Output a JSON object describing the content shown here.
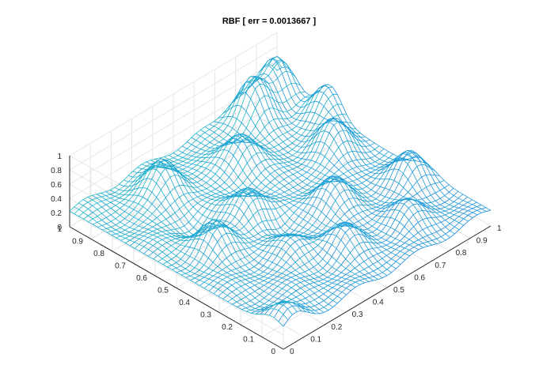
{
  "figure": {
    "background": "#ffffff"
  },
  "chart_data": {
    "type": "surface-mesh",
    "title": "RBF [ err = 0.0013667 ]",
    "xlabel": "",
    "ylabel": "",
    "zlabel": "",
    "xlim": [
      0,
      1
    ],
    "ylim": [
      0,
      1
    ],
    "zlim": [
      0,
      1
    ],
    "x_ticks": [
      "0",
      "0.1",
      "0.2",
      "0.3",
      "0.4",
      "0.5",
      "0.6",
      "0.7",
      "0.8",
      "0.9",
      "1"
    ],
    "y_ticks": [
      "0",
      "0.1",
      "0.2",
      "0.3",
      "0.4",
      "0.5",
      "0.6",
      "0.7",
      "0.8",
      "0.9",
      "1"
    ],
    "z_ticks": [
      "0",
      "0.2",
      "0.4",
      "0.6",
      "0.8",
      "1"
    ],
    "grid": true,
    "box": "open 3-D axes, view az=-37.5 el=30 style",
    "mesh_resolution": 46,
    "colormap": {
      "low": "#1e7fe6",
      "high": "#20c7c0"
    },
    "surface_peaks": [
      {
        "x": 0.05,
        "y": 0.05,
        "z": 0.45
      },
      {
        "x": 0.18,
        "y": 0.5,
        "z": 0.58
      },
      {
        "x": 0.3,
        "y": 0.85,
        "z": 0.7
      },
      {
        "x": 0.4,
        "y": 0.55,
        "z": 0.62
      },
      {
        "x": 0.5,
        "y": 0.2,
        "z": 0.52
      },
      {
        "x": 0.6,
        "y": 0.78,
        "z": 0.66
      },
      {
        "x": 0.65,
        "y": 0.4,
        "z": 0.6
      },
      {
        "x": 0.8,
        "y": 0.92,
        "z": 0.86
      },
      {
        "x": 0.86,
        "y": 0.6,
        "z": 0.7
      },
      {
        "x": 0.92,
        "y": 0.3,
        "z": 0.62
      },
      {
        "x": 0.95,
        "y": 0.95,
        "z": 0.78
      },
      {
        "x": 0.98,
        "y": 0.75,
        "z": 0.72
      },
      {
        "x": 0.75,
        "y": 0.15,
        "z": 0.48
      },
      {
        "x": 0.35,
        "y": 0.3,
        "z": 0.4
      }
    ],
    "surface_dips": [
      {
        "x": 0.45,
        "y": 0.45,
        "z": 0.05
      },
      {
        "x": 0.25,
        "y": 0.65,
        "z": 0.1
      }
    ],
    "surface_baseline": 0.22
  }
}
